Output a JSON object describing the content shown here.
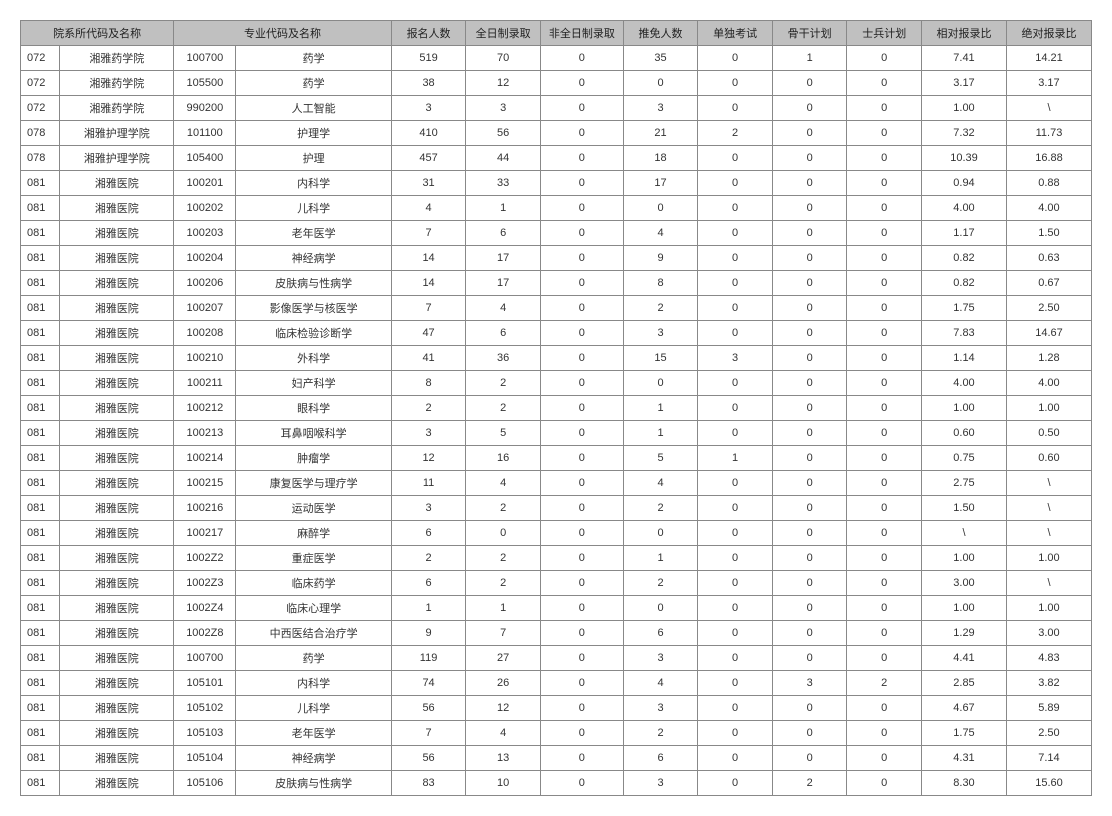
{
  "table": {
    "header_bg": "#c0c0c0",
    "border_color": "#888888",
    "font_size": 11,
    "columns": [
      {
        "key": "dept_code_name",
        "label": "院系所代码及名称",
        "span": 2
      },
      {
        "key": "major_code_name",
        "label": "专业代码及名称",
        "span": 2
      },
      {
        "key": "applicants",
        "label": "报名人数",
        "span": 1
      },
      {
        "key": "ft_admit",
        "label": "全日制录取",
        "span": 1
      },
      {
        "key": "pt_admit",
        "label": "非全日制录取",
        "span": 1
      },
      {
        "key": "rec_exempt",
        "label": "推免人数",
        "span": 1
      },
      {
        "key": "sep_exam",
        "label": "单独考试",
        "span": 1
      },
      {
        "key": "backbone",
        "label": "骨干计划",
        "span": 1
      },
      {
        "key": "soldier",
        "label": "士兵计划",
        "span": 1
      },
      {
        "key": "rel_ratio",
        "label": "相对报录比",
        "span": 1
      },
      {
        "key": "abs_ratio",
        "label": "绝对报录比",
        "span": 1
      }
    ],
    "rows": [
      [
        "072",
        "湘雅药学院",
        "100700",
        "药学",
        "519",
        "70",
        "0",
        "35",
        "0",
        "1",
        "0",
        "7.41",
        "14.21"
      ],
      [
        "072",
        "湘雅药学院",
        "105500",
        "药学",
        "38",
        "12",
        "0",
        "0",
        "0",
        "0",
        "0",
        "3.17",
        "3.17"
      ],
      [
        "072",
        "湘雅药学院",
        "990200",
        "人工智能",
        "3",
        "3",
        "0",
        "3",
        "0",
        "0",
        "0",
        "1.00",
        "\\"
      ],
      [
        "078",
        "湘雅护理学院",
        "101100",
        "护理学",
        "410",
        "56",
        "0",
        "21",
        "2",
        "0",
        "0",
        "7.32",
        "11.73"
      ],
      [
        "078",
        "湘雅护理学院",
        "105400",
        "护理",
        "457",
        "44",
        "0",
        "18",
        "0",
        "0",
        "0",
        "10.39",
        "16.88"
      ],
      [
        "081",
        "湘雅医院",
        "100201",
        "内科学",
        "31",
        "33",
        "0",
        "17",
        "0",
        "0",
        "0",
        "0.94",
        "0.88"
      ],
      [
        "081",
        "湘雅医院",
        "100202",
        "儿科学",
        "4",
        "1",
        "0",
        "0",
        "0",
        "0",
        "0",
        "4.00",
        "4.00"
      ],
      [
        "081",
        "湘雅医院",
        "100203",
        "老年医学",
        "7",
        "6",
        "0",
        "4",
        "0",
        "0",
        "0",
        "1.17",
        "1.50"
      ],
      [
        "081",
        "湘雅医院",
        "100204",
        "神经病学",
        "14",
        "17",
        "0",
        "9",
        "0",
        "0",
        "0",
        "0.82",
        "0.63"
      ],
      [
        "081",
        "湘雅医院",
        "100206",
        "皮肤病与性病学",
        "14",
        "17",
        "0",
        "8",
        "0",
        "0",
        "0",
        "0.82",
        "0.67"
      ],
      [
        "081",
        "湘雅医院",
        "100207",
        "影像医学与核医学",
        "7",
        "4",
        "0",
        "2",
        "0",
        "0",
        "0",
        "1.75",
        "2.50"
      ],
      [
        "081",
        "湘雅医院",
        "100208",
        "临床检验诊断学",
        "47",
        "6",
        "0",
        "3",
        "0",
        "0",
        "0",
        "7.83",
        "14.67"
      ],
      [
        "081",
        "湘雅医院",
        "100210",
        "外科学",
        "41",
        "36",
        "0",
        "15",
        "3",
        "0",
        "0",
        "1.14",
        "1.28"
      ],
      [
        "081",
        "湘雅医院",
        "100211",
        "妇产科学",
        "8",
        "2",
        "0",
        "0",
        "0",
        "0",
        "0",
        "4.00",
        "4.00"
      ],
      [
        "081",
        "湘雅医院",
        "100212",
        "眼科学",
        "2",
        "2",
        "0",
        "1",
        "0",
        "0",
        "0",
        "1.00",
        "1.00"
      ],
      [
        "081",
        "湘雅医院",
        "100213",
        "耳鼻咽喉科学",
        "3",
        "5",
        "0",
        "1",
        "0",
        "0",
        "0",
        "0.60",
        "0.50"
      ],
      [
        "081",
        "湘雅医院",
        "100214",
        "肿瘤学",
        "12",
        "16",
        "0",
        "5",
        "1",
        "0",
        "0",
        "0.75",
        "0.60"
      ],
      [
        "081",
        "湘雅医院",
        "100215",
        "康复医学与理疗学",
        "11",
        "4",
        "0",
        "4",
        "0",
        "0",
        "0",
        "2.75",
        "\\"
      ],
      [
        "081",
        "湘雅医院",
        "100216",
        "运动医学",
        "3",
        "2",
        "0",
        "2",
        "0",
        "0",
        "0",
        "1.50",
        "\\"
      ],
      [
        "081",
        "湘雅医院",
        "100217",
        "麻醉学",
        "6",
        "0",
        "0",
        "0",
        "0",
        "0",
        "0",
        "\\",
        "\\"
      ],
      [
        "081",
        "湘雅医院",
        "1002Z2",
        "重症医学",
        "2",
        "2",
        "0",
        "1",
        "0",
        "0",
        "0",
        "1.00",
        "1.00"
      ],
      [
        "081",
        "湘雅医院",
        "1002Z3",
        "临床药学",
        "6",
        "2",
        "0",
        "2",
        "0",
        "0",
        "0",
        "3.00",
        "\\"
      ],
      [
        "081",
        "湘雅医院",
        "1002Z4",
        "临床心理学",
        "1",
        "1",
        "0",
        "0",
        "0",
        "0",
        "0",
        "1.00",
        "1.00"
      ],
      [
        "081",
        "湘雅医院",
        "1002Z8",
        "中西医结合治疗学",
        "9",
        "7",
        "0",
        "6",
        "0",
        "0",
        "0",
        "1.29",
        "3.00"
      ],
      [
        "081",
        "湘雅医院",
        "100700",
        "药学",
        "119",
        "27",
        "0",
        "3",
        "0",
        "0",
        "0",
        "4.41",
        "4.83"
      ],
      [
        "081",
        "湘雅医院",
        "105101",
        "内科学",
        "74",
        "26",
        "0",
        "4",
        "0",
        "3",
        "2",
        "2.85",
        "3.82"
      ],
      [
        "081",
        "湘雅医院",
        "105102",
        "儿科学",
        "56",
        "12",
        "0",
        "3",
        "0",
        "0",
        "0",
        "4.67",
        "5.89"
      ],
      [
        "081",
        "湘雅医院",
        "105103",
        "老年医学",
        "7",
        "4",
        "0",
        "2",
        "0",
        "0",
        "0",
        "1.75",
        "2.50"
      ],
      [
        "081",
        "湘雅医院",
        "105104",
        "神经病学",
        "56",
        "13",
        "0",
        "6",
        "0",
        "0",
        "0",
        "4.31",
        "7.14"
      ],
      [
        "081",
        "湘雅医院",
        "105106",
        "皮肤病与性病学",
        "83",
        "10",
        "0",
        "3",
        "0",
        "2",
        "0",
        "8.30",
        "15.60"
      ]
    ]
  }
}
